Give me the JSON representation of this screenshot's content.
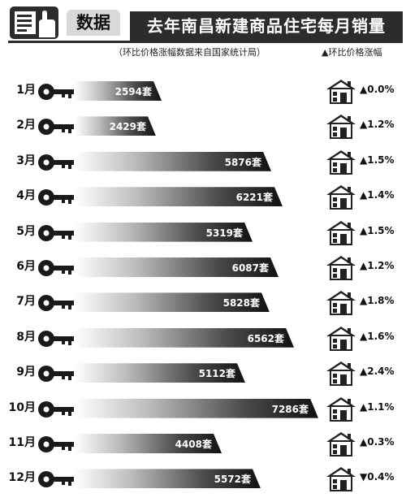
{
  "header": {
    "tag": "数据",
    "title": "去年南昌新建商品住宅每月销量",
    "source": "（环比价格涨幅数据来自国家统计局）",
    "legend_label": "▲环比价格涨幅"
  },
  "colors": {
    "dark": "#2c2c2c",
    "tag_bg": "#d9d9d9"
  },
  "icons": {
    "logo": "document-hand-icon",
    "row_left": "key-icon",
    "row_right": "house-icon"
  },
  "chart_data": {
    "type": "bar",
    "orientation": "horizontal",
    "categories": [
      "1月",
      "2月",
      "3月",
      "4月",
      "5月",
      "6月",
      "7月",
      "8月",
      "9月",
      "10月",
      "11月",
      "12月"
    ],
    "series": [
      {
        "values": [
          2594,
          2429,
          5876,
          6221,
          5319,
          6087,
          5828,
          6562,
          5112,
          7286,
          4408,
          5572
        ]
      }
    ],
    "value_labels": [
      "2594套",
      "2429套",
      "5876套",
      "6221套",
      "5319套",
      "6087套",
      "5828套",
      "6562套",
      "5112套",
      "7286套",
      "4408套",
      "5572套"
    ],
    "price_change_labels": [
      "▲0.0%",
      "▲1.2%",
      "▲1.5%",
      "▲1.4%",
      "▲1.5%",
      "▲1.2%",
      "▲1.8%",
      "▲1.6%",
      "▲2.4%",
      "▲1.1%",
      "▲0.3%",
      "▼0.4%"
    ],
    "price_change_values": [
      0.0,
      1.2,
      1.5,
      1.4,
      1.5,
      1.2,
      1.8,
      1.6,
      2.4,
      1.1,
      0.3,
      -0.4
    ],
    "title": "去年南昌新建商品住宅每月销量",
    "legend": [
      "▲环比价格涨幅"
    ],
    "legend_position": "top-right",
    "grid": false
  }
}
